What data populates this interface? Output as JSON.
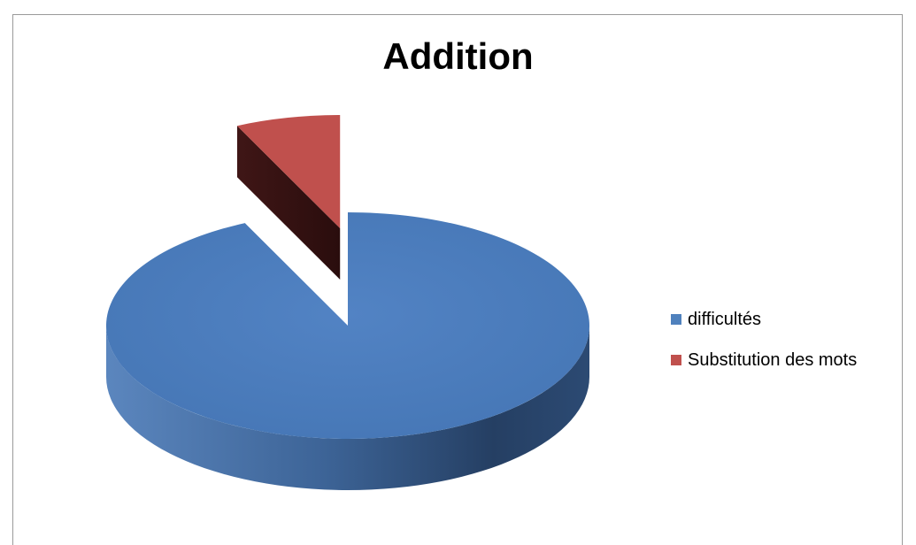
{
  "chart_data": {
    "type": "pie",
    "title": "Addition",
    "style": "3d-exploded",
    "legend_position": "right",
    "slices": [
      {
        "label": "difficultés",
        "value": 93,
        "color": "#4F81BD"
      },
      {
        "label": "Substitution des mots",
        "value": 7,
        "color": "#C0504D"
      }
    ]
  }
}
